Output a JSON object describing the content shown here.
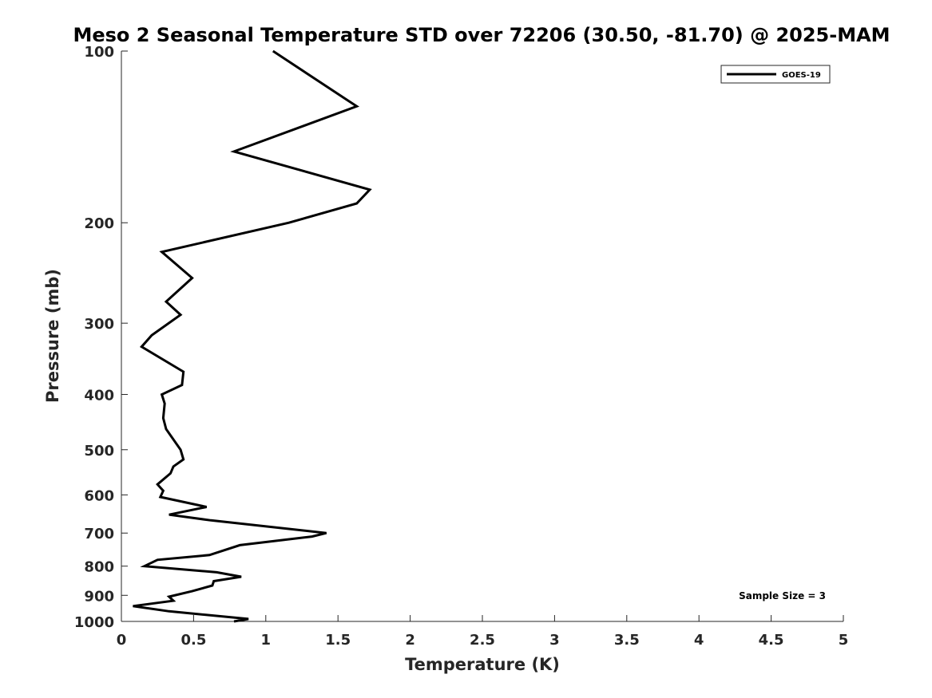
{
  "chart_data": {
    "type": "line",
    "title": "Meso 2 Seasonal Temperature STD over 72206 (30.50, -81.70) @ 2025-MAM",
    "xlabel": "Temperature (K)",
    "ylabel": "Pressure (mb)",
    "xlim": [
      0,
      5
    ],
    "ylim": [
      100,
      1000
    ],
    "yscale": "log",
    "y_reversed": true,
    "grid": false,
    "xticks": [
      0,
      0.5,
      1,
      1.5,
      2,
      2.5,
      3,
      3.5,
      4,
      4.5,
      5
    ],
    "xtick_labels": [
      "0",
      "0.5",
      "1",
      "1.5",
      "2",
      "2.5",
      "3",
      "3.5",
      "4",
      "4.5",
      "5"
    ],
    "yticks": [
      100,
      200,
      300,
      400,
      500,
      600,
      700,
      800,
      900,
      1000
    ],
    "ytick_labels": [
      "100",
      "200",
      "300",
      "400",
      "500",
      "600",
      "700",
      "800",
      "900",
      "1000"
    ],
    "legend_position": "top-right",
    "series": [
      {
        "name": "GOES-19",
        "color": "#000000",
        "x": [
          1.05,
          1.63,
          0.78,
          1.72,
          1.63,
          1.16,
          0.28,
          0.49,
          0.31,
          0.41,
          0.21,
          0.14,
          0.43,
          0.42,
          0.28,
          0.3,
          0.29,
          0.31,
          0.41,
          0.43,
          0.36,
          0.34,
          0.25,
          0.29,
          0.27,
          0.59,
          0.33,
          0.62,
          1.42,
          1.32,
          0.82,
          0.61,
          0.25,
          0.16,
          0.66,
          0.83,
          0.64,
          0.63,
          0.49,
          0.33,
          0.36,
          0.08,
          0.33,
          0.88,
          0.78
        ],
        "y": [
          100,
          125,
          150,
          175,
          185,
          200,
          225,
          250,
          275,
          290,
          315,
          330,
          365,
          385,
          400,
          415,
          440,
          460,
          500,
          520,
          535,
          550,
          575,
          590,
          605,
          630,
          650,
          665,
          700,
          710,
          735,
          765,
          780,
          800,
          820,
          835,
          850,
          865,
          885,
          905,
          920,
          940,
          960,
          990,
          1000
        ]
      }
    ],
    "annotation": "Sample Size = 3"
  }
}
